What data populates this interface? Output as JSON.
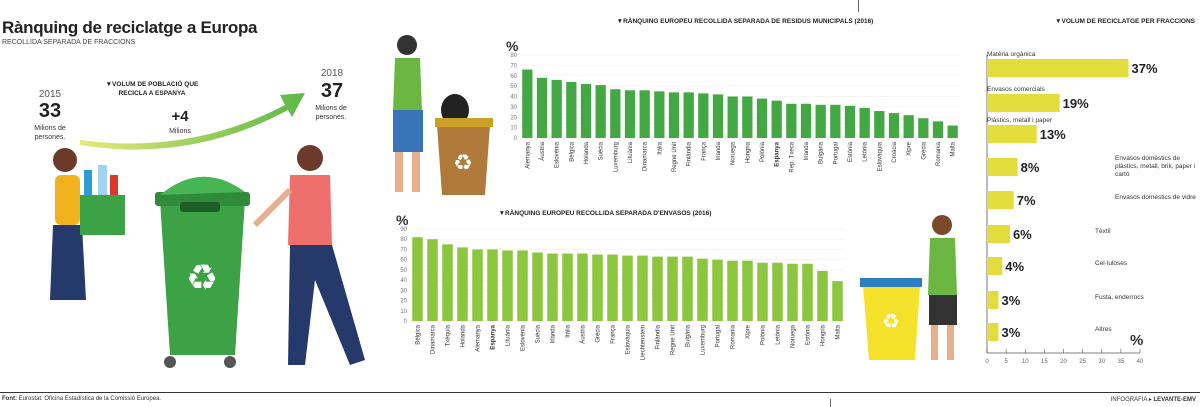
{
  "header": {
    "title": "Rànquing de reciclatge a Europa",
    "subtitle": "RECOLLIDA SEPARADA DE FRACCIONS"
  },
  "population": {
    "heading": "▼VOLUM DE POBLACIÓ QUE RECICLA A ESPANYA",
    "start_year": "2015",
    "start_value": "33",
    "start_unit": "Milions de persones.",
    "delta": "+4",
    "delta_unit": "Milions",
    "end_year": "2018",
    "end_value": "37",
    "end_unit": "Milions de persones.",
    "arrow_color": "#5cb847"
  },
  "footer": {
    "source_label": "Font:",
    "source": "Eurostat. Oficina Estadística de la Comissió Europea.",
    "credit_label": "INFOGRAFIA ▸",
    "credit": "LEVANTE-EMV"
  },
  "chart_data": [
    {
      "type": "bar",
      "title": "▼RÀNQUING EUROPEU RECOLLIDA SEPARADA DE RESIDUS MUNICIPALS (2016)",
      "ylabel": "%",
      "ylim": [
        0,
        80
      ],
      "yticks": [
        0,
        10,
        20,
        30,
        40,
        50,
        60,
        70,
        80
      ],
      "color": "#43a843",
      "highlight": "Espanya",
      "categories": [
        "Alemanya",
        "Àustria",
        "Eslovènia",
        "Bèlgica",
        "Holanda",
        "Suècia",
        "Luxemburg",
        "Lituània",
        "Dinamarca",
        "Itàlia",
        "Regne Unit",
        "Finlàndia",
        "França",
        "Irlanda",
        "Noruega",
        "Hongria",
        "Polònia",
        "Espanya",
        "Rep. Txeca",
        "Irlanda",
        "Bulgària",
        "Portugal",
        "Estònia",
        "Letònia",
        "Eslovàquia",
        "Croàcia",
        "Xipre",
        "Grècia",
        "Romania",
        "Malta"
      ],
      "values": [
        66,
        58,
        56,
        54,
        52,
        51,
        47,
        46,
        46,
        45,
        44,
        44,
        43,
        42,
        40,
        40,
        38,
        36,
        33,
        33,
        32,
        32,
        31,
        29,
        26,
        24,
        22,
        19,
        16,
        12
      ]
    },
    {
      "type": "bar",
      "title": "▼RÀNQUING EUROPEU RECOLLIDA SEPARADA D'ENVASOS (2016)",
      "ylabel": "%",
      "ylim": [
        0,
        90
      ],
      "yticks": [
        0,
        10,
        20,
        30,
        40,
        50,
        60,
        70,
        80,
        90
      ],
      "color": "#8cc63f",
      "highlight": "Espanya",
      "categories": [
        "Bèlgica",
        "Dinamarca",
        "Txèquia",
        "Holanda",
        "Alemanya",
        "Espanya",
        "Lituània",
        "Eslovènia",
        "Suècia",
        "Irlanda",
        "Itàlia",
        "Àustria",
        "Grècia",
        "França",
        "Eslovàquia",
        "Liechtenstein",
        "Finlàndia",
        "Regne Unit",
        "Bulgària",
        "Luxemburg",
        "Portugal",
        "Romania",
        "Xipre",
        "Polònia",
        "Letònia",
        "Noruega",
        "Estònia",
        "Hongria",
        "Malta"
      ],
      "values": [
        82,
        80,
        75,
        72,
        70,
        70,
        69,
        69,
        67,
        66,
        66,
        66,
        65,
        65,
        64,
        64,
        63,
        63,
        63,
        61,
        60,
        59,
        59,
        57,
        57,
        56,
        56,
        49,
        39
      ]
    },
    {
      "type": "bar",
      "orientation": "horizontal",
      "title": "▼VOLUM DE RECICLATGE PER FRACCIONS",
      "xlabel": "%",
      "xlim": [
        0,
        40
      ],
      "xticks": [
        0,
        5,
        10,
        15,
        20,
        25,
        30,
        35,
        40
      ],
      "color": "#e2dc3c",
      "categories": [
        "Matèria orgànica",
        "Envasos comercials",
        "Plàstics, metall i paper",
        "Envasos domèstics de plàstics, metall, brik, paper i cartó",
        "Envasos domèstics de vidre",
        "Tèxtil",
        "Cel·luloses",
        "Fusta, enderrocs",
        "Altres"
      ],
      "values": [
        37,
        19,
        13,
        8,
        7,
        6,
        4,
        3,
        3
      ],
      "data_labels": [
        "37%",
        "19%",
        "13%",
        "8%",
        "7%",
        "6%",
        "4%",
        "3%",
        "3%"
      ]
    }
  ]
}
